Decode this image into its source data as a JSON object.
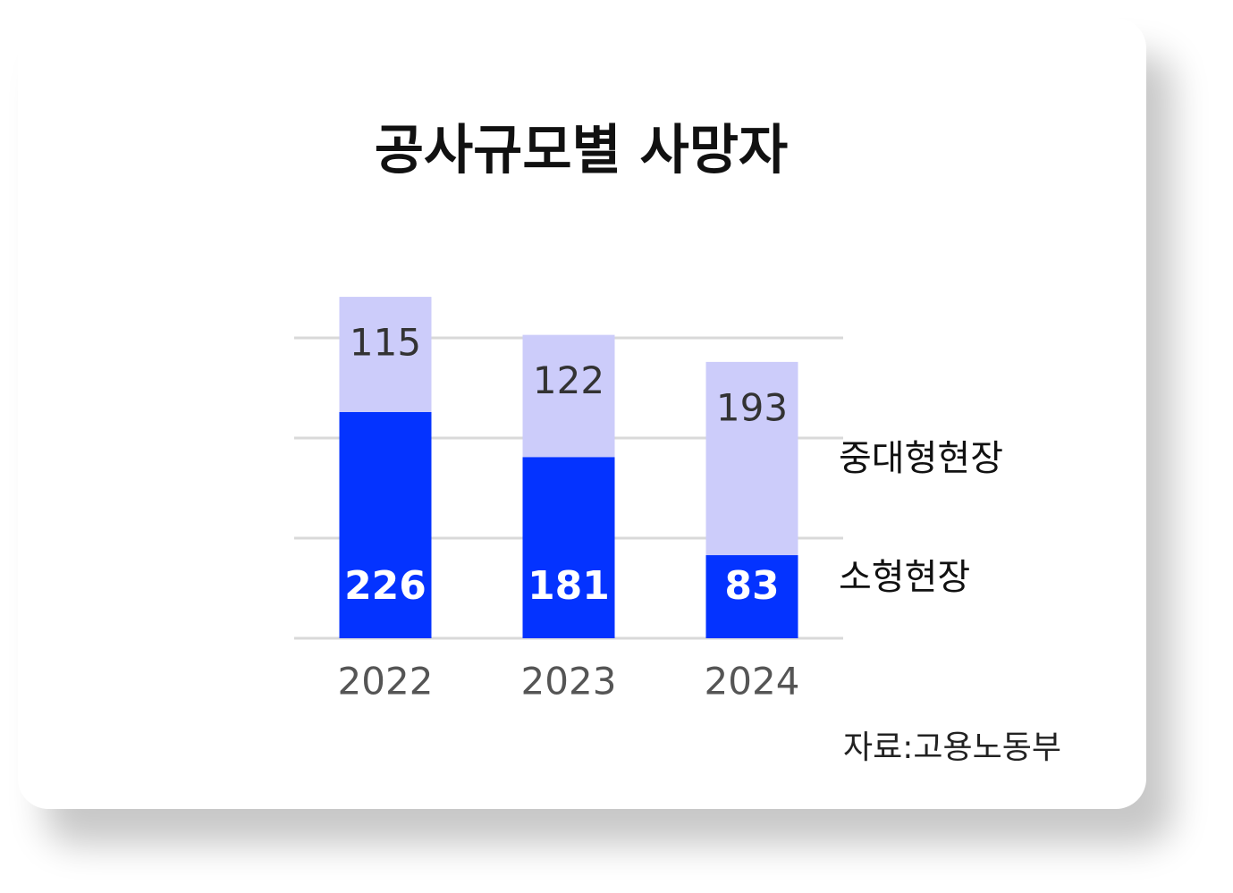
{
  "chart_data": {
    "type": "stacked-bar",
    "title": "공사규모별 사망자",
    "source": "자료:고용노동부",
    "categories": [
      "2022",
      "2023",
      "2024"
    ],
    "series": [
      {
        "name": "소형현장",
        "color": "#0433ff",
        "values": [
          226,
          181,
          83
        ]
      },
      {
        "name": "중대형현장",
        "color": "#ccccfa",
        "values": [
          115,
          122,
          193
        ]
      }
    ],
    "ylim": [
      0,
      350
    ],
    "yticks": [
      0,
      100,
      200,
      300
    ],
    "grid": true
  }
}
